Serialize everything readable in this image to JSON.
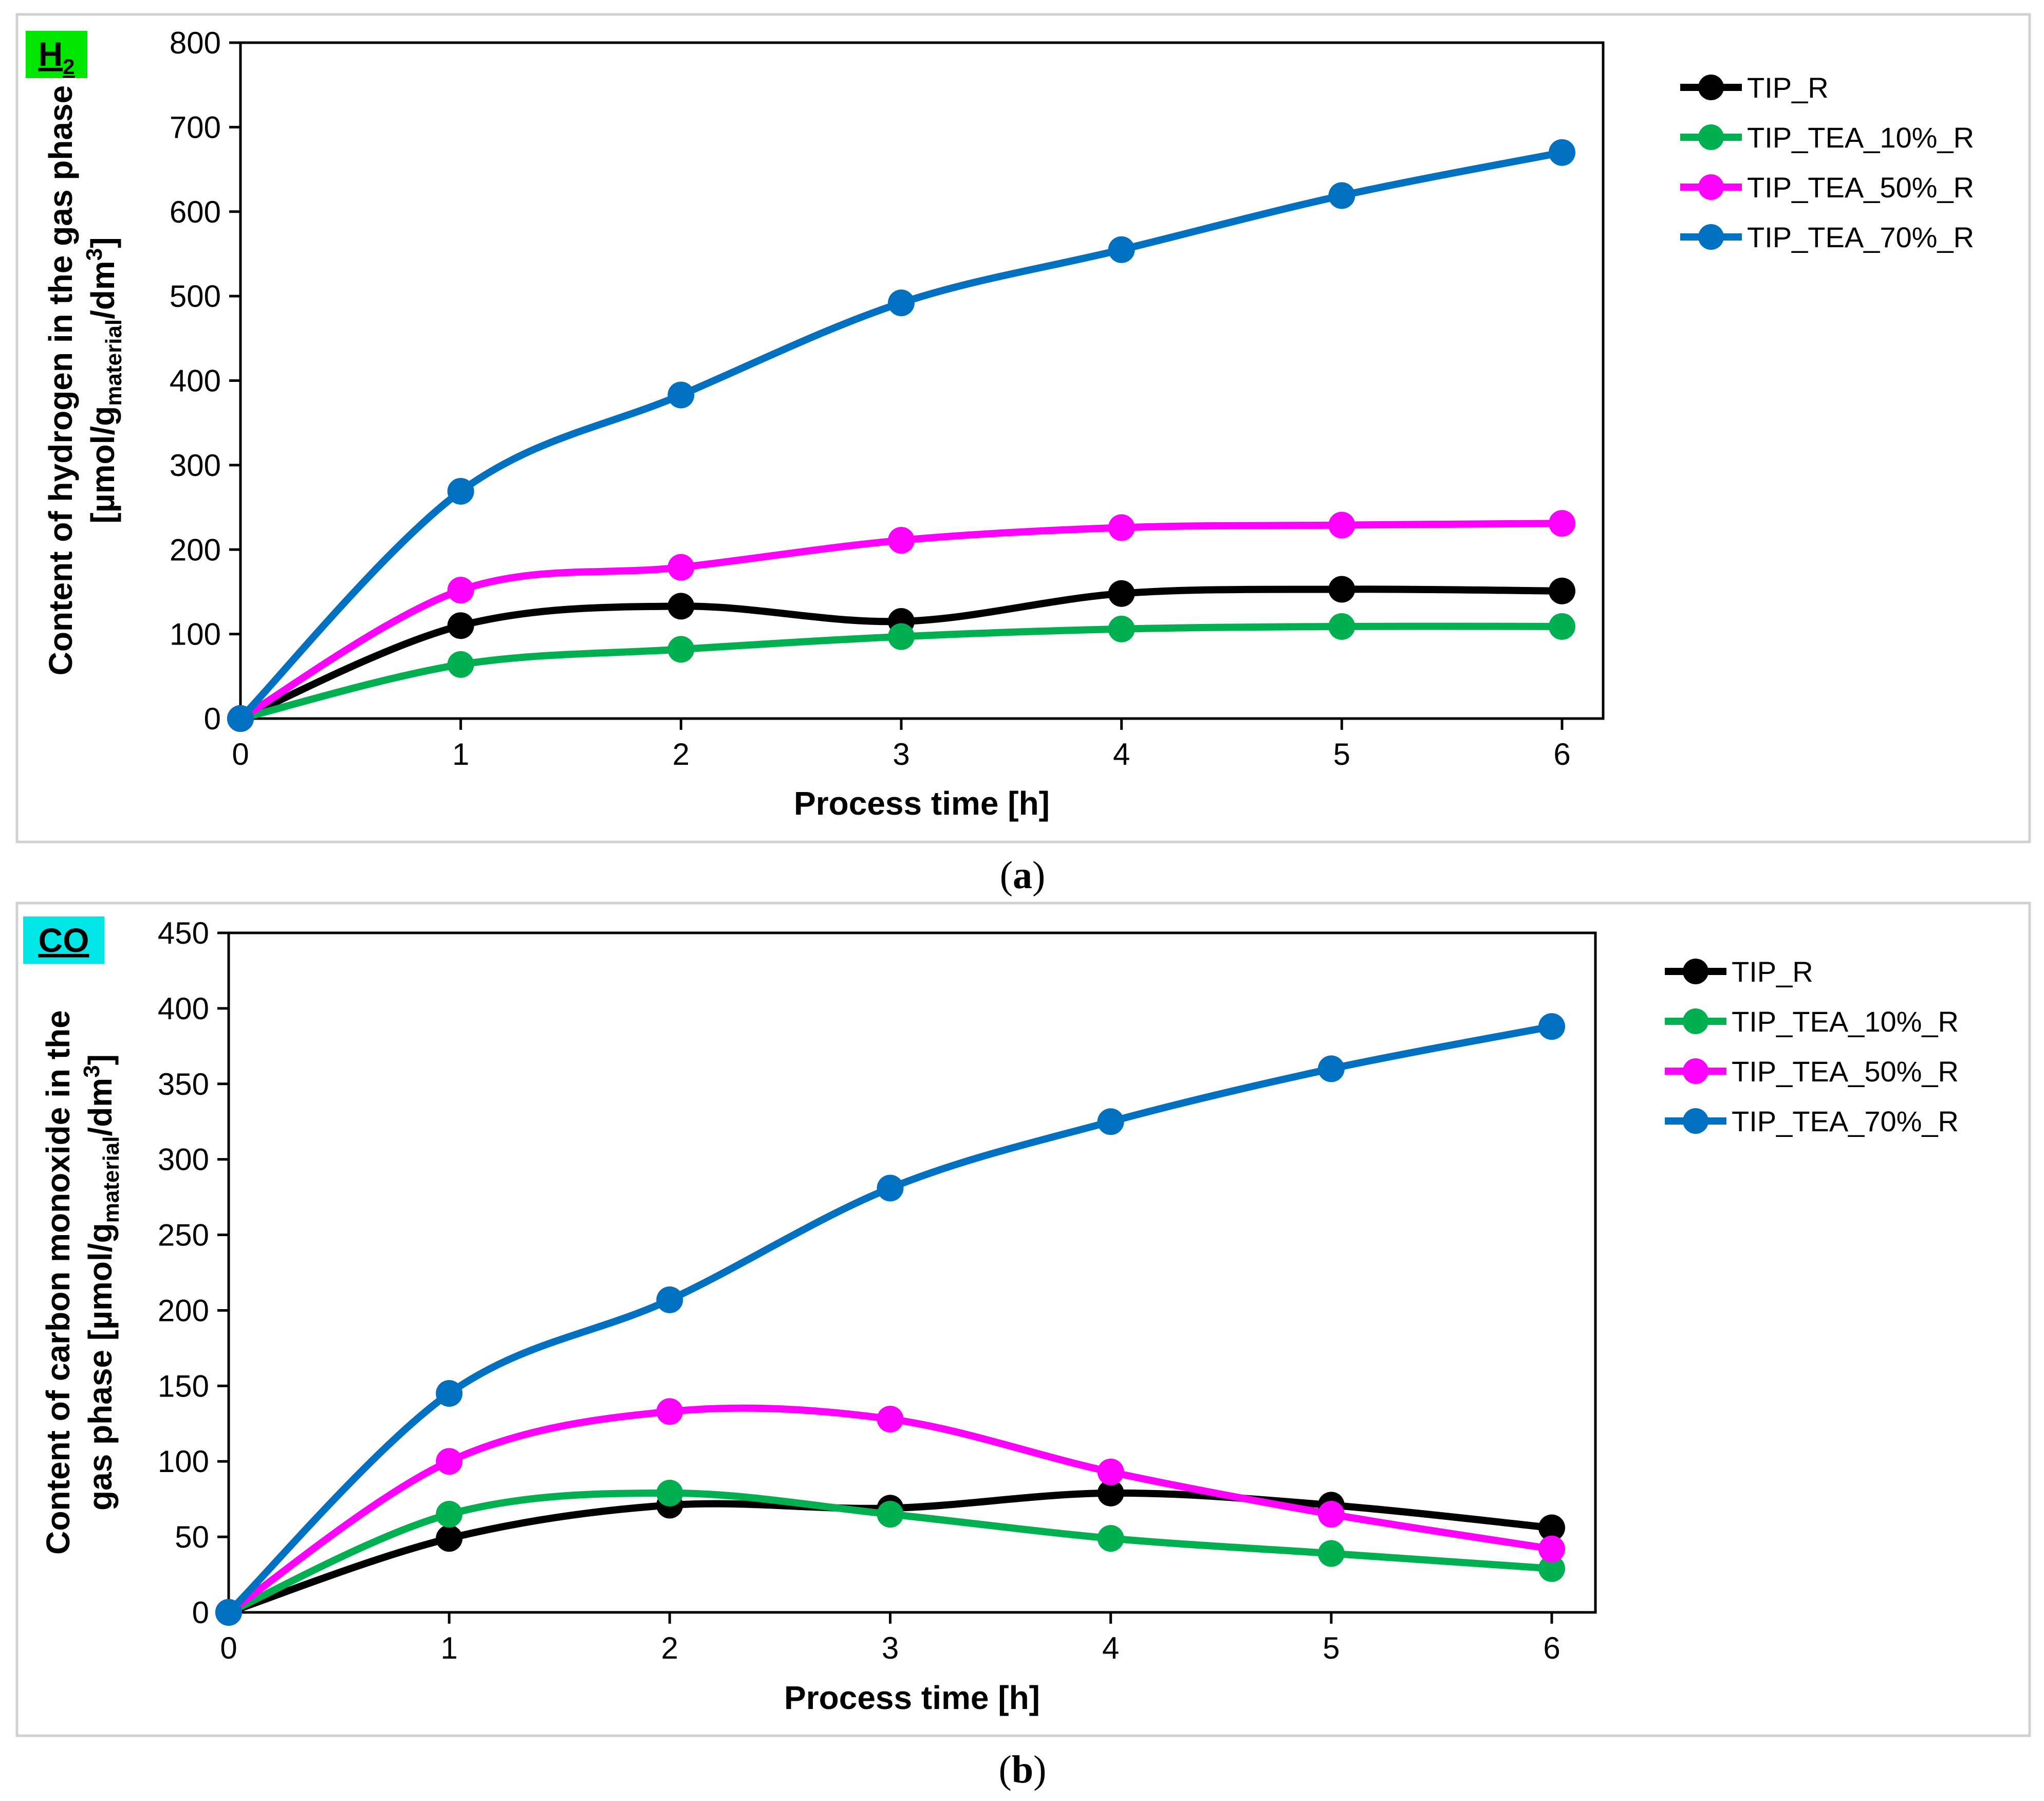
{
  "chart_data": [
    {
      "type": "line",
      "panel": "a",
      "gas_label": "H",
      "gas_label_sub": "2",
      "gas_label_color": "#00e600",
      "caption_open": "(",
      "caption_letter": "a",
      "caption_close": ")",
      "xlabel": "Process time  [h]",
      "ylabel_line1": "Content of hydrogen in the gas phase",
      "ylabel_line2_prefix": "[µmol/g",
      "ylabel_line2_sub": "material",
      "ylabel_line2_mid": "/dm",
      "ylabel_line2_sup": "3",
      "ylabel_line2_suffix": "]",
      "x": [
        0,
        1,
        2,
        3,
        4,
        5,
        6
      ],
      "x_ticks": [
        "0",
        "1",
        "2",
        "3",
        "4",
        "5",
        "6"
      ],
      "ylim": [
        0,
        800
      ],
      "y_ticks": [
        0,
        100,
        200,
        300,
        400,
        500,
        600,
        700,
        800
      ],
      "legend_position": "right",
      "series": [
        {
          "name": "TIP_R",
          "color": "#000000",
          "values": [
            0,
            110,
            133,
            115,
            148,
            153,
            151
          ]
        },
        {
          "name": "TIP_TEA_10%_R",
          "color": "#00b050",
          "values": [
            0,
            64,
            82,
            97,
            106,
            109,
            109
          ]
        },
        {
          "name": "TIP_TEA_50%_R",
          "color": "#ff00ff",
          "values": [
            0,
            152,
            179,
            211,
            226,
            229,
            231
          ]
        },
        {
          "name": "TIP_TEA_70%_R",
          "color": "#0070c0",
          "values": [
            0,
            269,
            383,
            492,
            555,
            619,
            670
          ]
        }
      ]
    },
    {
      "type": "line",
      "panel": "b",
      "gas_label": "CO",
      "gas_label_sub": "",
      "gas_label_color": "#00e6e6",
      "caption_open": "(",
      "caption_letter": "b",
      "caption_close": ")",
      "xlabel": "Process time  [h]",
      "ylabel_line1": "Content of carbon monoxide in the",
      "ylabel_line2_prefix": "gas phase [µmol/g",
      "ylabel_line2_sub": "material",
      "ylabel_line2_mid": "/dm",
      "ylabel_line2_sup": "3",
      "ylabel_line2_suffix": "]",
      "x": [
        0,
        1,
        2,
        3,
        4,
        5,
        6
      ],
      "x_ticks": [
        "0",
        "1",
        "2",
        "3",
        "4",
        "5",
        "6"
      ],
      "ylim": [
        0,
        450
      ],
      "y_ticks": [
        0,
        50,
        100,
        150,
        200,
        250,
        300,
        350,
        400,
        450
      ],
      "legend_position": "right",
      "series": [
        {
          "name": "TIP_R",
          "color": "#000000",
          "values": [
            0,
            49,
            71,
            69,
            79,
            71,
            56
          ]
        },
        {
          "name": "TIP_TEA_10%_R",
          "color": "#00b050",
          "values": [
            0,
            65,
            79,
            65,
            49,
            39,
            29
          ]
        },
        {
          "name": "TIP_TEA_50%_R",
          "color": "#ff00ff",
          "values": [
            0,
            100,
            133,
            128,
            93,
            65,
            42
          ]
        },
        {
          "name": "TIP_TEA_70%_R",
          "color": "#0070c0",
          "values": [
            0,
            145,
            207,
            281,
            325,
            360,
            388
          ]
        }
      ]
    }
  ]
}
